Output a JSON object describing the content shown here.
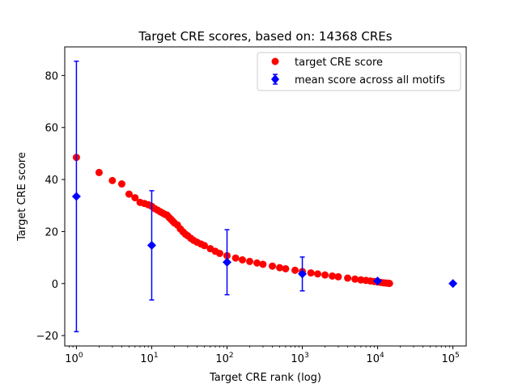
{
  "chart_data": {
    "type": "scatter",
    "title": "Target CRE scores, based on: 14368 CREs",
    "xlabel": "Target CRE rank (log)",
    "ylabel": "Target CRE score",
    "x_scale": "log",
    "xlim": [
      0.7,
      150000
    ],
    "ylim": [
      -24,
      91
    ],
    "x_ticks": [
      {
        "value": 1,
        "base": "10",
        "exp": "0"
      },
      {
        "value": 10,
        "base": "10",
        "exp": "1"
      },
      {
        "value": 100,
        "base": "10",
        "exp": "2"
      },
      {
        "value": 1000,
        "base": "10",
        "exp": "3"
      },
      {
        "value": 10000,
        "base": "10",
        "exp": "4"
      },
      {
        "value": 100000,
        "base": "10",
        "exp": "5"
      }
    ],
    "y_ticks": [
      -20,
      0,
      20,
      40,
      60,
      80
    ],
    "grid": false,
    "legend": {
      "location": "upper right",
      "entries": [
        {
          "label": "target CRE score",
          "color": "#ff0000",
          "marker": "circle"
        },
        {
          "label": "mean score across all motifs",
          "color": "#0000ff",
          "marker": "diamond-errorbar"
        }
      ]
    },
    "series": [
      {
        "name": "target CRE score",
        "color": "#ff0000",
        "marker": "circle",
        "points": [
          [
            1,
            48.5
          ],
          [
            2,
            42.7
          ],
          [
            3,
            39.6
          ],
          [
            4,
            38.3
          ],
          [
            5,
            34.4
          ],
          [
            6,
            33.0
          ],
          [
            7,
            31.2
          ],
          [
            8,
            30.8
          ],
          [
            9,
            30.3
          ],
          [
            10,
            29.7
          ],
          [
            11,
            28.8
          ],
          [
            12,
            28.2
          ],
          [
            13,
            27.6
          ],
          [
            14,
            27.1
          ],
          [
            15,
            26.6
          ],
          [
            16,
            26.3
          ],
          [
            17,
            25.4
          ],
          [
            18,
            24.7
          ],
          [
            19,
            24.0
          ],
          [
            20,
            23.3
          ],
          [
            22,
            22.5
          ],
          [
            24,
            21.0
          ],
          [
            26,
            19.9
          ],
          [
            28,
            19.0
          ],
          [
            30,
            18.4
          ],
          [
            33,
            17.4
          ],
          [
            36,
            16.6
          ],
          [
            40,
            15.9
          ],
          [
            45,
            15.2
          ],
          [
            50,
            14.6
          ],
          [
            60,
            13.4
          ],
          [
            70,
            12.4
          ],
          [
            80,
            11.6
          ],
          [
            100,
            10.7
          ],
          [
            130,
            9.8
          ],
          [
            160,
            9.1
          ],
          [
            200,
            8.5
          ],
          [
            250,
            7.9
          ],
          [
            300,
            7.4
          ],
          [
            400,
            6.7
          ],
          [
            500,
            6.1
          ],
          [
            600,
            5.7
          ],
          [
            800,
            5.1
          ],
          [
            1000,
            4.6
          ],
          [
            1300,
            4.1
          ],
          [
            1600,
            3.7
          ],
          [
            2000,
            3.3
          ],
          [
            2500,
            2.9
          ],
          [
            3000,
            2.6
          ],
          [
            4000,
            2.1
          ],
          [
            5000,
            1.7
          ],
          [
            6000,
            1.4
          ],
          [
            7000,
            1.2
          ],
          [
            8000,
            1.0
          ],
          [
            9000,
            0.8
          ],
          [
            10000,
            0.6
          ],
          [
            11000,
            0.45
          ],
          [
            12000,
            0.3
          ],
          [
            13000,
            0.2
          ],
          [
            14000,
            0.1
          ],
          [
            14368,
            0.05
          ]
        ]
      },
      {
        "name": "mean score across all motifs",
        "color": "#0000ff",
        "marker": "diamond",
        "points": [
          {
            "x": 1,
            "y": 33.5,
            "err": 52
          },
          {
            "x": 10,
            "y": 14.7,
            "err": 21
          },
          {
            "x": 100,
            "y": 8.2,
            "err": 12.5
          },
          {
            "x": 1000,
            "y": 3.7,
            "err": 6.5
          },
          {
            "x": 10000,
            "y": 1.0,
            "err": 0
          },
          {
            "x": 100000,
            "y": 0.0,
            "err": 0
          }
        ]
      }
    ]
  }
}
